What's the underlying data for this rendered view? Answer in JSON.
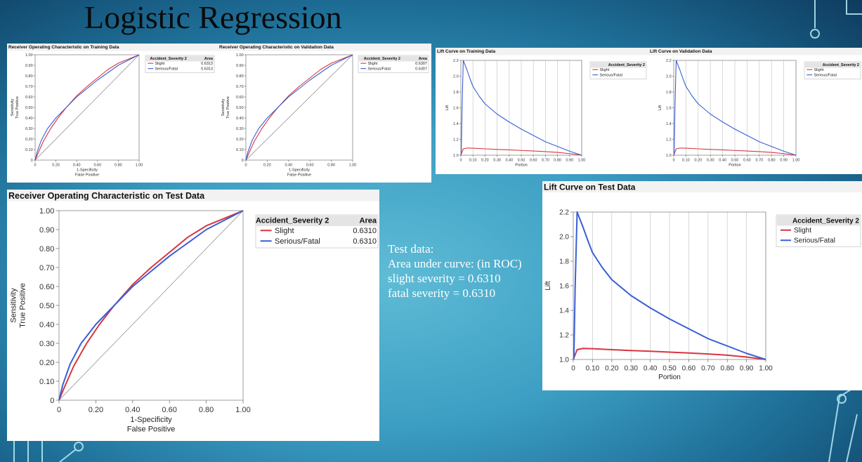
{
  "slide": {
    "title": "Logistic Regression",
    "note": {
      "line1": "Test data:",
      "line2": "Area under curve: (in ROC)",
      "line3": "slight severity = 0.6310",
      "line4": "fatal severity = 0.6310"
    }
  },
  "colors": {
    "slight": "#d9353f",
    "serious": "#3a5fd6",
    "diagonal": "#777777",
    "grid": "#cfcfcf",
    "legend_header": "#e4e4e4"
  },
  "chart_data": [
    {
      "id": "roc-train",
      "type": "line",
      "title": "Receiver Operating Characteristic on Training Data",
      "xlabel": "1-Specificity",
      "xlabel2": "False Positive",
      "ylabel": "Sensitivity",
      "ylabel2": "True Positive",
      "xlim": [
        0,
        1
      ],
      "ylim": [
        0,
        1
      ],
      "xticks": [
        0,
        0.2,
        0.4,
        0.6,
        0.8,
        1.0
      ],
      "xtick_labels": [
        "0",
        "0.20",
        "0.40",
        "0.60",
        "0.80",
        "1.00"
      ],
      "yticks": [
        0,
        0.1,
        0.2,
        0.3,
        0.4,
        0.5,
        0.6,
        0.7,
        0.8,
        0.9,
        1.0
      ],
      "ytick_labels": [
        "0",
        "0.10",
        "0.20",
        "0.30",
        "0.40",
        "0.50",
        "0.60",
        "0.70",
        "0.80",
        "0.90",
        "1.00"
      ],
      "diagonal": true,
      "legend": {
        "header": "Accident_Severity 2",
        "area_header": "Area",
        "placement": "top-right"
      },
      "series": [
        {
          "name": "Slight",
          "area": "0.6313",
          "x": [
            0,
            0.03,
            0.08,
            0.15,
            0.22,
            0.3,
            0.4,
            0.5,
            0.6,
            0.7,
            0.8,
            0.9,
            1.0
          ],
          "y": [
            0,
            0.07,
            0.18,
            0.3,
            0.4,
            0.5,
            0.61,
            0.7,
            0.78,
            0.86,
            0.92,
            0.96,
            1.0
          ]
        },
        {
          "name": "Serious/Fatal",
          "area": "0.6313",
          "x": [
            0,
            0.02,
            0.06,
            0.12,
            0.2,
            0.3,
            0.4,
            0.5,
            0.6,
            0.7,
            0.8,
            0.9,
            1.0
          ],
          "y": [
            0,
            0.08,
            0.19,
            0.3,
            0.4,
            0.5,
            0.6,
            0.68,
            0.76,
            0.83,
            0.9,
            0.95,
            1.0
          ]
        }
      ]
    },
    {
      "id": "roc-valid",
      "type": "line",
      "title": "Receiver Operating Characteristic on Validation Data",
      "xlabel": "1-Specificity",
      "xlabel2": "False Positive",
      "ylabel": "Sensitivity",
      "ylabel2": "True Positive",
      "xlim": [
        0,
        1
      ],
      "ylim": [
        0,
        1
      ],
      "xticks": [
        0,
        0.2,
        0.4,
        0.6,
        0.8,
        1.0
      ],
      "xtick_labels": [
        "0",
        "0.20",
        "0.40",
        "0.60",
        "0.80",
        "1.00"
      ],
      "yticks": [
        0,
        0.1,
        0.2,
        0.3,
        0.4,
        0.5,
        0.6,
        0.7,
        0.8,
        0.9,
        1.0
      ],
      "ytick_labels": [
        "0",
        "0.10",
        "0.20",
        "0.30",
        "0.40",
        "0.50",
        "0.60",
        "0.70",
        "0.80",
        "0.90",
        "1.00"
      ],
      "diagonal": true,
      "legend": {
        "header": "Accident_Severity 2",
        "area_header": "Area",
        "placement": "top-right"
      },
      "series": [
        {
          "name": "Slight",
          "area": "0.6307",
          "x": [
            0,
            0.03,
            0.08,
            0.15,
            0.22,
            0.3,
            0.4,
            0.5,
            0.6,
            0.7,
            0.8,
            0.9,
            1.0
          ],
          "y": [
            0,
            0.07,
            0.18,
            0.3,
            0.4,
            0.5,
            0.61,
            0.7,
            0.78,
            0.86,
            0.92,
            0.96,
            1.0
          ]
        },
        {
          "name": "Serious/Fatal",
          "area": "0.6307",
          "x": [
            0,
            0.02,
            0.06,
            0.12,
            0.2,
            0.3,
            0.4,
            0.5,
            0.6,
            0.7,
            0.8,
            0.9,
            1.0
          ],
          "y": [
            0,
            0.08,
            0.19,
            0.3,
            0.4,
            0.5,
            0.6,
            0.68,
            0.76,
            0.83,
            0.9,
            0.95,
            1.0
          ]
        }
      ]
    },
    {
      "id": "roc-test",
      "type": "line",
      "title": "Receiver Operating Characteristic on Test Data",
      "xlabel": "1-Specificity",
      "xlabel2": "False Positive",
      "ylabel": "Sensitivity",
      "ylabel2": "True Positive",
      "xlim": [
        0,
        1
      ],
      "ylim": [
        0,
        1
      ],
      "xticks": [
        0,
        0.2,
        0.4,
        0.6,
        0.8,
        1.0
      ],
      "xtick_labels": [
        "0",
        "0.20",
        "0.40",
        "0.60",
        "0.80",
        "1.00"
      ],
      "yticks": [
        0,
        0.1,
        0.2,
        0.3,
        0.4,
        0.5,
        0.6,
        0.7,
        0.8,
        0.9,
        1.0
      ],
      "ytick_labels": [
        "0",
        "0.10",
        "0.20",
        "0.30",
        "0.40",
        "0.50",
        "0.60",
        "0.70",
        "0.80",
        "0.90",
        "1.00"
      ],
      "diagonal": true,
      "legend": {
        "header": "Accident_Severity 2",
        "area_header": "Area",
        "placement": "top-right"
      },
      "series": [
        {
          "name": "Slight",
          "area": "0.6310",
          "x": [
            0,
            0.03,
            0.08,
            0.15,
            0.22,
            0.3,
            0.4,
            0.5,
            0.6,
            0.7,
            0.8,
            0.9,
            1.0
          ],
          "y": [
            0,
            0.07,
            0.18,
            0.3,
            0.4,
            0.5,
            0.61,
            0.7,
            0.78,
            0.86,
            0.92,
            0.96,
            1.0
          ]
        },
        {
          "name": "Serious/Fatal",
          "area": "0.6310",
          "x": [
            0,
            0.02,
            0.06,
            0.12,
            0.2,
            0.3,
            0.4,
            0.5,
            0.6,
            0.7,
            0.8,
            0.9,
            1.0
          ],
          "y": [
            0,
            0.08,
            0.19,
            0.3,
            0.4,
            0.5,
            0.6,
            0.68,
            0.76,
            0.83,
            0.9,
            0.95,
            1.0
          ]
        }
      ]
    },
    {
      "id": "lift-train",
      "type": "line",
      "title": "Lift Curve on Training Data",
      "xlabel": "Portion",
      "ylabel": "Lift",
      "xlim": [
        0,
        1
      ],
      "ylim": [
        1.0,
        2.2
      ],
      "xticks": [
        0,
        0.1,
        0.2,
        0.3,
        0.4,
        0.5,
        0.6,
        0.7,
        0.8,
        0.9,
        1.0
      ],
      "xtick_labels": [
        "0",
        "0.10",
        "0.20",
        "0.30",
        "0.40",
        "0.50",
        "0.60",
        "0.70",
        "0.80",
        "0.90",
        "1.00"
      ],
      "yticks": [
        1.0,
        1.2,
        1.4,
        1.6,
        1.8,
        2.0,
        2.2
      ],
      "ytick_labels": [
        "1.0",
        "1.2",
        "1.4",
        "1.6",
        "1.8",
        "2.0",
        "2.2"
      ],
      "vgrid": true,
      "legend": {
        "header": "Accident_Severity 2",
        "placement": "top-right"
      },
      "series": [
        {
          "name": "Slight",
          "x": [
            0.005,
            0.02,
            0.05,
            0.1,
            0.2,
            0.3,
            0.4,
            0.5,
            0.6,
            0.7,
            0.8,
            0.9,
            1.0
          ],
          "y": [
            1.02,
            1.08,
            1.09,
            1.088,
            1.08,
            1.073,
            1.067,
            1.06,
            1.053,
            1.045,
            1.035,
            1.02,
            1.0
          ]
        },
        {
          "name": "Serious/Fatal",
          "x": [
            0.003,
            0.01,
            0.02,
            0.03,
            0.05,
            0.08,
            0.1,
            0.15,
            0.2,
            0.3,
            0.4,
            0.5,
            0.6,
            0.7,
            0.8,
            0.9,
            1.0
          ],
          "y": [
            1.0,
            1.6,
            2.2,
            2.16,
            2.08,
            1.95,
            1.87,
            1.75,
            1.65,
            1.52,
            1.42,
            1.33,
            1.25,
            1.17,
            1.11,
            1.05,
            1.0
          ]
        }
      ]
    },
    {
      "id": "lift-valid",
      "type": "line",
      "title": "Lift Curve on Validation Data",
      "xlabel": "Portion",
      "ylabel": "Lift",
      "xlim": [
        0,
        1
      ],
      "ylim": [
        1.0,
        2.2
      ],
      "xticks": [
        0,
        0.1,
        0.2,
        0.3,
        0.4,
        0.5,
        0.6,
        0.7,
        0.8,
        0.9,
        1.0
      ],
      "xtick_labels": [
        "0",
        "0.10",
        "0.20",
        "0.30",
        "0.40",
        "0.50",
        "0.60",
        "0.70",
        "0.80",
        "0.90",
        "1.00"
      ],
      "yticks": [
        1.0,
        1.2,
        1.4,
        1.6,
        1.8,
        2.0,
        2.2
      ],
      "ytick_labels": [
        "1.0",
        "1.2",
        "1.4",
        "1.6",
        "1.8",
        "2.0",
        "2.2"
      ],
      "vgrid": true,
      "legend": {
        "header": "Accident_Severity 2",
        "placement": "top-right"
      },
      "series": [
        {
          "name": "Slight",
          "x": [
            0.005,
            0.02,
            0.05,
            0.1,
            0.2,
            0.3,
            0.4,
            0.5,
            0.6,
            0.7,
            0.8,
            0.9,
            1.0
          ],
          "y": [
            1.02,
            1.08,
            1.09,
            1.088,
            1.08,
            1.073,
            1.067,
            1.06,
            1.053,
            1.045,
            1.035,
            1.02,
            1.0
          ]
        },
        {
          "name": "Serious/Fatal",
          "x": [
            0.003,
            0.01,
            0.02,
            0.03,
            0.05,
            0.08,
            0.1,
            0.15,
            0.2,
            0.3,
            0.4,
            0.5,
            0.6,
            0.7,
            0.8,
            0.9,
            1.0
          ],
          "y": [
            1.0,
            1.6,
            2.2,
            2.16,
            2.08,
            1.95,
            1.87,
            1.75,
            1.65,
            1.52,
            1.42,
            1.33,
            1.25,
            1.17,
            1.11,
            1.05,
            1.0
          ]
        }
      ]
    },
    {
      "id": "lift-test",
      "type": "line",
      "title": "Lift Curve on Test Data",
      "xlabel": "Portion",
      "ylabel": "Lift",
      "xlim": [
        0,
        1
      ],
      "ylim": [
        1.0,
        2.2
      ],
      "xticks": [
        0,
        0.1,
        0.2,
        0.3,
        0.4,
        0.5,
        0.6,
        0.7,
        0.8,
        0.9,
        1.0
      ],
      "xtick_labels": [
        "0",
        "0.10",
        "0.20",
        "0.30",
        "0.40",
        "0.50",
        "0.60",
        "0.70",
        "0.80",
        "0.90",
        "1.00"
      ],
      "yticks": [
        1.0,
        1.2,
        1.4,
        1.6,
        1.8,
        2.0,
        2.2
      ],
      "ytick_labels": [
        "1.0",
        "1.2",
        "1.4",
        "1.6",
        "1.8",
        "2.0",
        "2.2"
      ],
      "vgrid": true,
      "legend": {
        "header": "Accident_Severity 2",
        "placement": "top-right"
      },
      "series": [
        {
          "name": "Slight",
          "x": [
            0.005,
            0.02,
            0.05,
            0.1,
            0.2,
            0.3,
            0.4,
            0.5,
            0.6,
            0.7,
            0.8,
            0.9,
            1.0
          ],
          "y": [
            1.02,
            1.08,
            1.09,
            1.088,
            1.08,
            1.073,
            1.067,
            1.06,
            1.053,
            1.045,
            1.035,
            1.02,
            1.0
          ]
        },
        {
          "name": "Serious/Fatal",
          "x": [
            0.003,
            0.01,
            0.02,
            0.03,
            0.05,
            0.08,
            0.1,
            0.15,
            0.2,
            0.3,
            0.4,
            0.5,
            0.6,
            0.7,
            0.8,
            0.9,
            1.0
          ],
          "y": [
            1.0,
            1.6,
            2.2,
            2.16,
            2.08,
            1.95,
            1.87,
            1.75,
            1.65,
            1.52,
            1.42,
            1.33,
            1.25,
            1.17,
            1.11,
            1.05,
            1.0
          ]
        }
      ]
    }
  ]
}
